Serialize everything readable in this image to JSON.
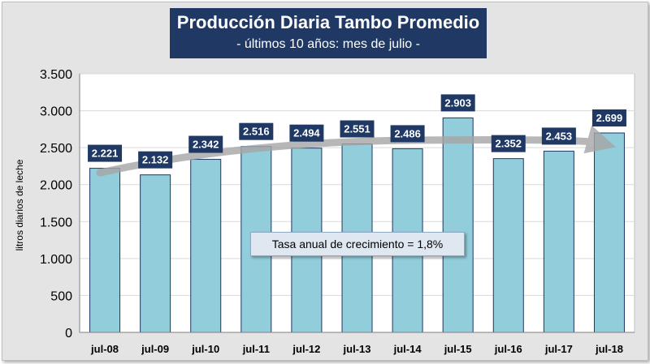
{
  "chart_data": {
    "type": "bar",
    "title": "Producción Diaria Tambo Promedio",
    "subtitle": "- últimos 10 años: mes de julio -",
    "ylabel": "litros diarios de leche",
    "xlabel": "",
    "categories": [
      "jul-08",
      "jul-09",
      "jul-10",
      "jul-11",
      "jul-12",
      "jul-13",
      "jul-14",
      "jul-15",
      "jul-16",
      "jul-17",
      "jul-18"
    ],
    "values": [
      2221,
      2132,
      2342,
      2516,
      2494,
      2551,
      2486,
      2903,
      2352,
      2453,
      2699
    ],
    "value_labels": [
      "2.221",
      "2.132",
      "2.342",
      "2.516",
      "2.494",
      "2.551",
      "2.486",
      "2.903",
      "2.352",
      "2.453",
      "2.699"
    ],
    "ylim": [
      0,
      3500
    ],
    "yticks": [
      0,
      500,
      1000,
      1500,
      2000,
      2500,
      3000,
      3500
    ],
    "ytick_labels": [
      "0",
      "500",
      "1.000",
      "1.500",
      "2.000",
      "2.500",
      "3.000",
      "3.500"
    ],
    "grid": true,
    "trend": {
      "type": "arrow",
      "start_value": 2160,
      "mid_value": 2600,
      "end_value": 2560
    },
    "annotation": "Tasa anual de crecimiento = 1,8%"
  },
  "colors": {
    "background": "#e4e4e4",
    "plot_background": "#ffffff",
    "bar_fill": "#92cddc",
    "bar_stroke": "#1f3864",
    "label_box": "#1f3864",
    "title_box": "#1f3864",
    "trend": "#a6a6a6",
    "grid": "#d9d9d9"
  }
}
